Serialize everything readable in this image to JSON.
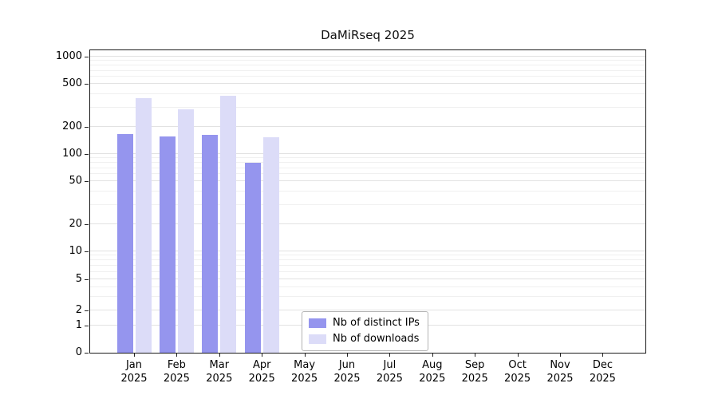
{
  "chart_data": {
    "type": "bar",
    "title": "DaMiRseq 2025",
    "categories": [
      "Jan 2025",
      "Feb 2025",
      "Mar 2025",
      "Apr 2025",
      "May 2025",
      "Jun 2025",
      "Jul 2025",
      "Aug 2025",
      "Sep 2025",
      "Oct 2025",
      "Nov 2025",
      "Dec 2025"
    ],
    "series": [
      {
        "name": "Nb of distinct IPs",
        "color": "#9595ee",
        "values": [
          165,
          158,
          163,
          80,
          null,
          null,
          null,
          null,
          null,
          null,
          null,
          null
        ]
      },
      {
        "name": "Nb of downloads",
        "color": "#dcdcf8",
        "values": [
          370,
          290,
          385,
          155,
          null,
          null,
          null,
          null,
          null,
          null,
          null,
          null
        ]
      }
    ],
    "y_ticks": [
      0,
      1,
      2,
      5,
      10,
      20,
      50,
      100,
      200,
      500,
      1000
    ],
    "y_scale": "log",
    "xlabel": "",
    "ylabel": "",
    "grid": "horizontal",
    "legend_position": "inside-bottom-center"
  }
}
